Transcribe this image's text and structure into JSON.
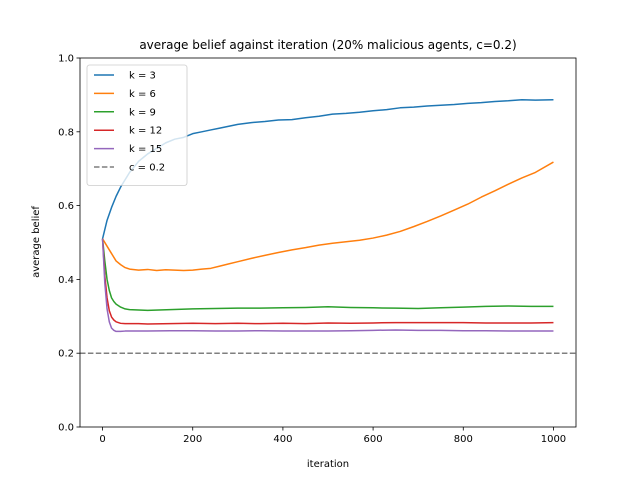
{
  "chart_data": {
    "type": "line",
    "title": "average belief against iteration (20% malicious agents, c=0.2)",
    "xlabel": "iteration",
    "ylabel": "average belief",
    "xlim": [
      -50,
      1050
    ],
    "ylim": [
      0.0,
      1.0
    ],
    "xticks": [
      0,
      200,
      400,
      600,
      800,
      1000
    ],
    "yticks": [
      0.0,
      0.2,
      0.4,
      0.6,
      0.8,
      1.0
    ],
    "xtick_labels": [
      "0",
      "200",
      "400",
      "600",
      "800",
      "1000"
    ],
    "ytick_labels": [
      "0.0",
      "0.2",
      "0.4",
      "0.6",
      "0.8",
      "1.0"
    ],
    "grid": false,
    "legend_position": "top-left",
    "series": [
      {
        "name": "k = 3",
        "color": "#1f77b4",
        "x": [
          0,
          10,
          20,
          30,
          40,
          50,
          60,
          70,
          80,
          90,
          100,
          120,
          140,
          160,
          180,
          200,
          220,
          240,
          260,
          280,
          300,
          330,
          360,
          390,
          420,
          450,
          480,
          510,
          540,
          570,
          600,
          630,
          660,
          690,
          720,
          750,
          780,
          810,
          840,
          870,
          900,
          930,
          960,
          1000
        ],
        "y": [
          0.51,
          0.56,
          0.595,
          0.625,
          0.65,
          0.67,
          0.69,
          0.705,
          0.72,
          0.73,
          0.74,
          0.755,
          0.77,
          0.78,
          0.785,
          0.795,
          0.8,
          0.805,
          0.81,
          0.815,
          0.82,
          0.825,
          0.828,
          0.832,
          0.833,
          0.838,
          0.842,
          0.848,
          0.85,
          0.853,
          0.857,
          0.86,
          0.865,
          0.867,
          0.87,
          0.872,
          0.874,
          0.877,
          0.879,
          0.882,
          0.884,
          0.887,
          0.886,
          0.887
        ]
      },
      {
        "name": "k = 6",
        "color": "#ff7f0e",
        "x": [
          0,
          10,
          20,
          30,
          40,
          50,
          60,
          80,
          100,
          120,
          140,
          160,
          180,
          200,
          220,
          240,
          260,
          280,
          300,
          330,
          360,
          390,
          420,
          450,
          480,
          510,
          540,
          570,
          600,
          630,
          660,
          690,
          720,
          750,
          780,
          810,
          840,
          870,
          900,
          930,
          960,
          1000
        ],
        "y": [
          0.51,
          0.49,
          0.47,
          0.45,
          0.44,
          0.432,
          0.428,
          0.425,
          0.427,
          0.424,
          0.426,
          0.425,
          0.424,
          0.425,
          0.428,
          0.43,
          0.436,
          0.442,
          0.448,
          0.457,
          0.465,
          0.473,
          0.48,
          0.486,
          0.493,
          0.498,
          0.502,
          0.506,
          0.512,
          0.52,
          0.53,
          0.543,
          0.557,
          0.572,
          0.588,
          0.604,
          0.623,
          0.64,
          0.658,
          0.675,
          0.69,
          0.718
        ]
      },
      {
        "name": "k = 9",
        "color": "#2ca02c",
        "x": [
          0,
          5,
          10,
          15,
          20,
          25,
          30,
          40,
          50,
          60,
          80,
          100,
          150,
          200,
          250,
          300,
          350,
          400,
          450,
          500,
          550,
          600,
          650,
          700,
          750,
          800,
          850,
          900,
          950,
          1000
        ],
        "y": [
          0.51,
          0.45,
          0.4,
          0.37,
          0.35,
          0.34,
          0.333,
          0.325,
          0.32,
          0.318,
          0.317,
          0.316,
          0.318,
          0.32,
          0.321,
          0.322,
          0.322,
          0.323,
          0.324,
          0.326,
          0.324,
          0.323,
          0.322,
          0.321,
          0.323,
          0.325,
          0.327,
          0.328,
          0.327,
          0.327
        ]
      },
      {
        "name": "k = 12",
        "color": "#d62728",
        "x": [
          0,
          5,
          10,
          15,
          20,
          25,
          30,
          40,
          50,
          60,
          80,
          100,
          150,
          200,
          250,
          300,
          350,
          400,
          450,
          500,
          550,
          600,
          650,
          700,
          750,
          800,
          850,
          900,
          950,
          1000
        ],
        "y": [
          0.51,
          0.41,
          0.35,
          0.315,
          0.298,
          0.29,
          0.285,
          0.281,
          0.28,
          0.28,
          0.28,
          0.279,
          0.28,
          0.281,
          0.28,
          0.281,
          0.28,
          0.281,
          0.28,
          0.282,
          0.281,
          0.282,
          0.283,
          0.283,
          0.283,
          0.283,
          0.282,
          0.282,
          0.282,
          0.283
        ]
      },
      {
        "name": "k = 15",
        "color": "#9467bd",
        "x": [
          0,
          5,
          10,
          15,
          20,
          25,
          30,
          40,
          50,
          60,
          80,
          100,
          150,
          200,
          250,
          300,
          350,
          400,
          450,
          500,
          550,
          600,
          650,
          700,
          750,
          800,
          850,
          900,
          950,
          1000
        ],
        "y": [
          0.51,
          0.39,
          0.32,
          0.285,
          0.268,
          0.262,
          0.259,
          0.259,
          0.26,
          0.26,
          0.26,
          0.26,
          0.261,
          0.261,
          0.26,
          0.26,
          0.261,
          0.26,
          0.26,
          0.26,
          0.261,
          0.262,
          0.263,
          0.262,
          0.262,
          0.261,
          0.261,
          0.26,
          0.26,
          0.26
        ]
      }
    ],
    "reference_line": {
      "name": "c = 0.2",
      "y": 0.2,
      "color": "#7f7f7f",
      "style": "dashed"
    }
  }
}
